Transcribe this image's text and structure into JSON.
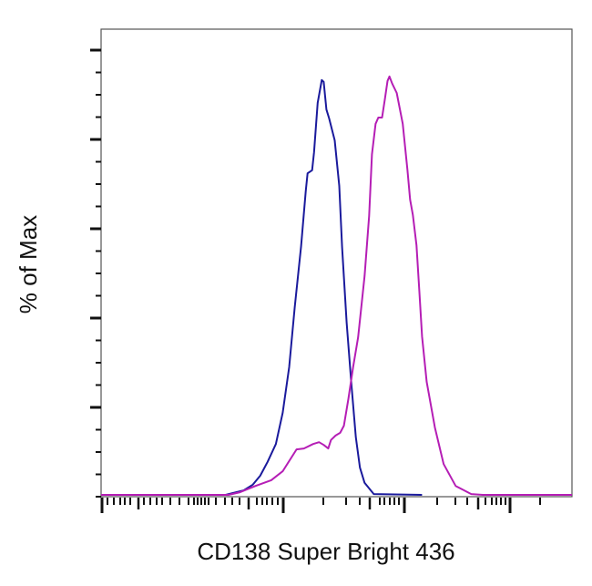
{
  "chart_data": {
    "type": "line",
    "title": "",
    "xlabel": "CD138 Super Bright 436",
    "ylabel": "% of Max",
    "x_scale": "biexponential (log decades, unlabeled ticks)",
    "xlim": [
      0,
      1024
    ],
    "ylim": [
      0,
      100
    ],
    "grid": false,
    "legend": "none",
    "series": [
      {
        "color": "#1a1a9c",
        "points": [
          [
            198,
            0.4
          ],
          [
            237,
            0.4
          ],
          [
            271,
            0.4
          ],
          [
            310,
            1.4
          ],
          [
            330,
            2.7
          ],
          [
            346,
            4.7
          ],
          [
            362,
            7.8
          ],
          [
            380,
            11.8
          ],
          [
            395,
            18.8
          ],
          [
            409,
            29.0
          ],
          [
            421,
            42.4
          ],
          [
            435,
            56.1
          ],
          [
            445,
            68.4
          ],
          [
            449,
            72.4
          ],
          [
            459,
            73.1
          ],
          [
            463,
            77.1
          ],
          [
            471,
            88.2
          ],
          [
            480,
            93.3
          ],
          [
            484,
            92.9
          ],
          [
            490,
            86.7
          ],
          [
            496,
            84.7
          ],
          [
            508,
            79.8
          ],
          [
            518,
            69.6
          ],
          [
            524,
            55.9
          ],
          [
            534,
            39.0
          ],
          [
            544,
            25.5
          ],
          [
            554,
            13.3
          ],
          [
            563,
            6.5
          ],
          [
            573,
            3.1
          ],
          [
            593,
            0.6
          ],
          [
            698,
            0.4
          ]
        ]
      },
      {
        "color": "#b51eb5",
        "points": [
          [
            0,
            0.4
          ],
          [
            237,
            0.4
          ],
          [
            277,
            0.4
          ],
          [
            302,
            1.0
          ],
          [
            336,
            2.4
          ],
          [
            370,
            3.7
          ],
          [
            395,
            5.7
          ],
          [
            425,
            10.6
          ],
          [
            441,
            10.8
          ],
          [
            461,
            11.8
          ],
          [
            474,
            12.2
          ],
          [
            484,
            11.6
          ],
          [
            494,
            10.8
          ],
          [
            500,
            12.7
          ],
          [
            510,
            13.7
          ],
          [
            520,
            14.3
          ],
          [
            528,
            15.9
          ],
          [
            538,
            22.0
          ],
          [
            548,
            29.0
          ],
          [
            559,
            35.7
          ],
          [
            573,
            49.4
          ],
          [
            583,
            62.9
          ],
          [
            589,
            76.7
          ],
          [
            597,
            83.5
          ],
          [
            603,
            84.9
          ],
          [
            611,
            84.9
          ],
          [
            617,
            88.9
          ],
          [
            623,
            93.1
          ],
          [
            627,
            94.1
          ],
          [
            633,
            92.5
          ],
          [
            643,
            90.4
          ],
          [
            656,
            83.5
          ],
          [
            666,
            73.3
          ],
          [
            672,
            66.5
          ],
          [
            678,
            63.1
          ],
          [
            686,
            56.3
          ],
          [
            692,
            46.1
          ],
          [
            698,
            35.9
          ],
          [
            708,
            25.7
          ],
          [
            726,
            15.5
          ],
          [
            745,
            7.3
          ],
          [
            771,
            2.4
          ],
          [
            805,
            0.6
          ],
          [
            830,
            0.4
          ],
          [
            1024,
            0.4
          ]
        ]
      }
    ]
  }
}
